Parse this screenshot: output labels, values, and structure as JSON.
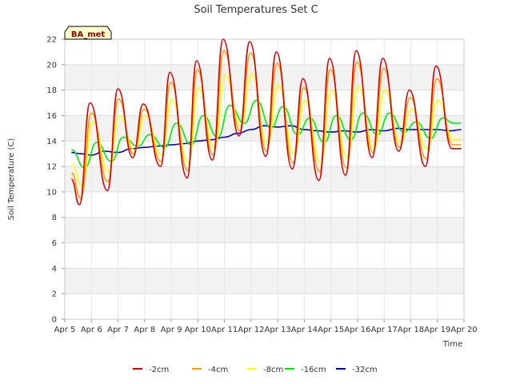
{
  "chart_data": {
    "type": "line",
    "title": "Soil Temperatures Set C",
    "xlabel": "Time",
    "ylabel": "Soil Temperature (C)",
    "badge": "BA_met",
    "xlim": [
      5,
      20
    ],
    "ylim": [
      0,
      22
    ],
    "x_ticks": [
      5,
      6,
      7,
      8,
      9,
      10,
      11,
      12,
      13,
      14,
      15,
      16,
      17,
      18,
      19,
      20
    ],
    "x_tick_labels": [
      "Apr 5",
      "Apr 6",
      "Apr 7",
      "Apr 8",
      "Apr 9",
      "Apr 10",
      "Apr 11",
      "Apr 12",
      "Apr 13",
      "Apr 14",
      "Apr 15",
      "Apr 16",
      "Apr 17",
      "Apr 18",
      "Apr 19",
      "Apr 20"
    ],
    "y_ticks": [
      0,
      2,
      4,
      6,
      8,
      10,
      12,
      14,
      16,
      18,
      20,
      22
    ],
    "y_tick_labels": [
      "0",
      "2",
      "4",
      "6",
      "8",
      "10",
      "12",
      "14",
      "16",
      "18",
      "20",
      "22"
    ],
    "grid": true,
    "legend_position": "bottom",
    "series": [
      {
        "name": "-2cm",
        "color": "#dd0000",
        "x": [
          5.25,
          5.55,
          5.95,
          6.6,
          7.0,
          7.55,
          7.95,
          8.6,
          8.95,
          9.6,
          9.95,
          10.55,
          10.95,
          11.55,
          11.95,
          12.55,
          12.95,
          13.55,
          13.95,
          14.55,
          14.95,
          15.55,
          15.95,
          16.55,
          16.95,
          17.55,
          17.95,
          18.55,
          18.95,
          19.55,
          19.9
        ],
        "y": [
          11.0,
          9.0,
          17.0,
          10.1,
          18.1,
          12.7,
          16.9,
          12.0,
          19.4,
          11.1,
          20.3,
          12.5,
          22.0,
          14.4,
          21.8,
          12.8,
          21.0,
          11.8,
          18.9,
          10.9,
          20.5,
          11.3,
          21.1,
          12.7,
          20.5,
          13.2,
          18.0,
          12.0,
          19.9,
          13.4,
          13.4
        ]
      },
      {
        "name": "-4cm",
        "color": "#ff9900",
        "x": [
          5.25,
          5.6,
          6.0,
          6.62,
          7.02,
          7.58,
          7.98,
          8.62,
          8.98,
          9.62,
          9.98,
          10.58,
          10.98,
          11.58,
          11.98,
          12.58,
          12.98,
          13.58,
          13.98,
          14.58,
          14.98,
          15.58,
          15.98,
          16.58,
          16.98,
          17.58,
          17.98,
          18.58,
          18.98,
          19.58,
          19.9
        ],
        "y": [
          11.5,
          9.5,
          16.2,
          10.8,
          17.3,
          13.0,
          16.5,
          12.4,
          18.6,
          11.7,
          19.6,
          12.9,
          21.1,
          14.8,
          20.9,
          13.2,
          20.1,
          12.3,
          18.2,
          11.6,
          19.6,
          11.9,
          20.2,
          13.1,
          19.7,
          13.5,
          17.4,
          12.6,
          18.9,
          13.7,
          13.7
        ]
      },
      {
        "name": "-8cm",
        "color": "#ffff00",
        "x": [
          5.25,
          5.65,
          6.05,
          6.65,
          7.05,
          7.62,
          8.02,
          8.65,
          9.02,
          9.65,
          10.02,
          10.62,
          11.02,
          11.62,
          12.02,
          12.62,
          13.02,
          13.62,
          14.02,
          14.62,
          15.02,
          15.62,
          16.02,
          16.62,
          17.02,
          17.62,
          18.02,
          18.62,
          19.02,
          19.62,
          19.9
        ],
        "y": [
          12.2,
          10.5,
          15.5,
          11.6,
          16.0,
          13.3,
          16.0,
          12.9,
          17.3,
          12.3,
          18.2,
          13.4,
          19.2,
          15.2,
          19.3,
          13.7,
          18.4,
          13.0,
          17.2,
          12.3,
          18.0,
          12.7,
          18.3,
          13.4,
          18.0,
          13.9,
          16.5,
          13.4,
          17.2,
          14.1,
          14.1
        ]
      },
      {
        "name": "-16cm",
        "color": "#00ee00",
        "x": [
          5.25,
          5.75,
          6.2,
          6.75,
          7.2,
          7.75,
          8.2,
          8.75,
          9.2,
          9.75,
          10.2,
          10.75,
          11.2,
          11.75,
          12.2,
          12.75,
          13.2,
          13.75,
          14.2,
          14.75,
          15.2,
          15.75,
          16.2,
          16.75,
          17.2,
          17.75,
          18.2,
          18.75,
          19.2,
          19.62,
          19.9
        ],
        "y": [
          13.3,
          11.9,
          13.9,
          12.4,
          14.3,
          13.6,
          14.5,
          13.5,
          15.4,
          13.7,
          16.0,
          14.3,
          16.8,
          15.4,
          17.2,
          15.0,
          16.7,
          14.5,
          15.8,
          13.9,
          16.0,
          14.1,
          16.2,
          14.5,
          16.2,
          14.7,
          15.5,
          14.2,
          15.8,
          15.4,
          15.4
        ]
      },
      {
        "name": "-32cm",
        "color": "#0000bb",
        "x": [
          5.25,
          5.6,
          6.0,
          6.5,
          7.0,
          7.5,
          8.0,
          8.5,
          9.0,
          9.5,
          10.0,
          10.5,
          11.0,
          11.5,
          12.0,
          12.5,
          13.0,
          13.5,
          14.0,
          14.5,
          15.0,
          15.5,
          16.0,
          16.5,
          17.0,
          17.5,
          18.0,
          18.5,
          19.0,
          19.5,
          19.9
        ],
        "y": [
          13.1,
          13.0,
          12.9,
          13.2,
          13.1,
          13.4,
          13.5,
          13.6,
          13.7,
          13.8,
          14.0,
          14.1,
          14.3,
          14.6,
          14.9,
          15.2,
          15.1,
          15.2,
          14.9,
          14.8,
          14.7,
          14.8,
          14.7,
          14.9,
          14.8,
          15.0,
          14.9,
          14.9,
          14.9,
          14.8,
          14.9
        ]
      }
    ]
  }
}
